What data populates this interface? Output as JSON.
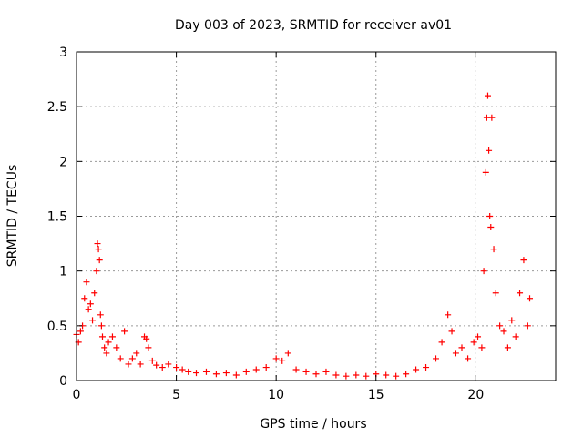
{
  "chart_data": {
    "type": "scatter",
    "title": "Day 003 of 2023, SRMTID for receiver av01",
    "xlabel": "GPS time / hours",
    "ylabel": "SRMTID / TECUs",
    "xlim": [
      0,
      24
    ],
    "ylim": [
      0,
      3
    ],
    "xticks": [
      0,
      5,
      10,
      15,
      20
    ],
    "yticks": [
      0,
      0.5,
      1,
      1.5,
      2,
      2.5,
      3
    ],
    "xtick_labels": [
      "0",
      "5",
      "10",
      "15",
      "20"
    ],
    "ytick_labels": [
      "0",
      "0.5",
      "1",
      "1.5",
      "2",
      "2.5",
      "3"
    ],
    "grid": true,
    "marker": "+",
    "marker_color": "#ff0000",
    "series": [
      {
        "name": "av01",
        "x": [
          0.0,
          0.1,
          0.2,
          0.3,
          0.4,
          0.5,
          0.6,
          0.7,
          0.8,
          0.9,
          1.0,
          1.05,
          1.1,
          1.15,
          1.2,
          1.25,
          1.3,
          1.4,
          1.5,
          1.6,
          1.8,
          2.0,
          2.2,
          2.4,
          2.6,
          2.8,
          3.0,
          3.2,
          3.4,
          3.5,
          3.6,
          3.8,
          4.0,
          4.3,
          4.6,
          5.0,
          5.3,
          5.6,
          6.0,
          6.5,
          7.0,
          7.5,
          8.0,
          8.5,
          9.0,
          9.5,
          10.0,
          10.3,
          10.6,
          11.0,
          11.5,
          12.0,
          12.5,
          13.0,
          13.5,
          14.0,
          14.5,
          15.0,
          15.5,
          16.0,
          16.5,
          17.0,
          17.5,
          18.0,
          18.3,
          18.6,
          18.8,
          19.0,
          19.3,
          19.6,
          19.9,
          20.1,
          20.3,
          20.4,
          20.5,
          20.55,
          20.6,
          20.65,
          20.7,
          20.75,
          20.8,
          20.9,
          21.0,
          21.2,
          21.4,
          21.6,
          21.8,
          22.0,
          22.2,
          22.4,
          22.6,
          22.7
        ],
        "y": [
          0.42,
          0.35,
          0.45,
          0.5,
          0.75,
          0.9,
          0.65,
          0.7,
          0.55,
          0.8,
          1.0,
          1.25,
          1.2,
          1.1,
          0.6,
          0.5,
          0.4,
          0.3,
          0.25,
          0.35,
          0.4,
          0.3,
          0.2,
          0.45,
          0.15,
          0.2,
          0.25,
          0.15,
          0.4,
          0.38,
          0.3,
          0.18,
          0.14,
          0.12,
          0.15,
          0.12,
          0.1,
          0.08,
          0.07,
          0.08,
          0.06,
          0.07,
          0.05,
          0.08,
          0.1,
          0.12,
          0.2,
          0.18,
          0.25,
          0.1,
          0.08,
          0.06,
          0.08,
          0.05,
          0.04,
          0.05,
          0.04,
          0.06,
          0.05,
          0.04,
          0.06,
          0.1,
          0.12,
          0.2,
          0.35,
          0.6,
          0.45,
          0.25,
          0.3,
          0.2,
          0.35,
          0.4,
          0.3,
          1.0,
          1.9,
          2.4,
          2.6,
          2.1,
          1.5,
          1.4,
          2.4,
          1.2,
          0.8,
          0.5,
          0.45,
          0.3,
          0.55,
          0.4,
          0.8,
          1.1,
          0.5,
          0.75
        ]
      }
    ]
  }
}
